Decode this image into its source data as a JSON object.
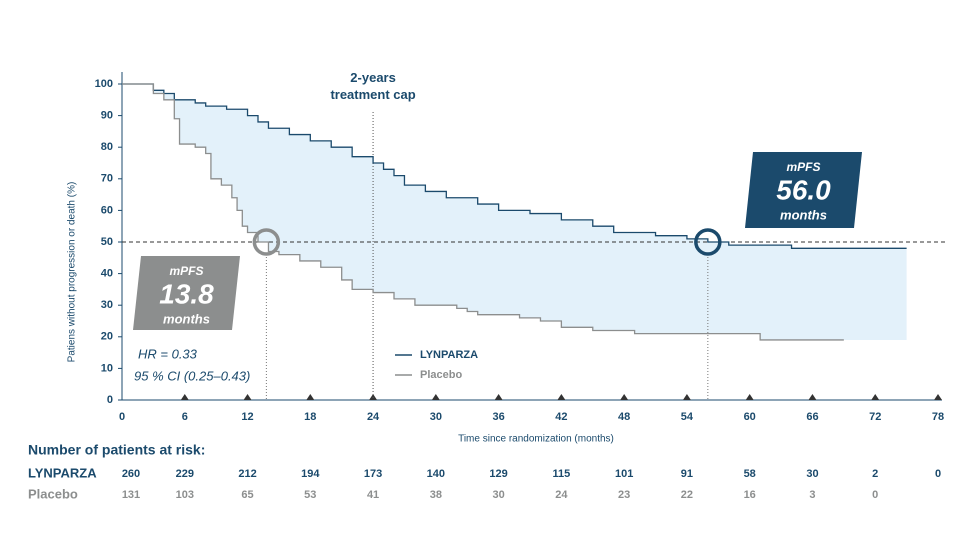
{
  "chart_data": {
    "type": "step",
    "xlabel": "Time since randomization (months)",
    "ylabel": "Patiens without progression or death (%)",
    "xlim": [
      0,
      78
    ],
    "xticks": [
      0,
      6,
      12,
      18,
      24,
      30,
      36,
      42,
      48,
      54,
      60,
      66,
      72,
      78
    ],
    "ylim": [
      0,
      100
    ],
    "yticks": [
      0,
      10,
      20,
      30,
      40,
      50,
      60,
      70,
      80,
      90,
      100
    ],
    "reference_line": 50,
    "treatment_cap": {
      "value": 24,
      "label": "2-years treatment cap"
    },
    "series": [
      {
        "name": "LYNPARZA",
        "color": "#1b4a6c",
        "x": [
          0,
          2.5,
          3,
          4,
          5,
          7,
          8,
          10,
          12,
          13,
          14,
          16,
          18,
          20,
          22,
          24,
          25,
          26,
          27,
          29,
          31,
          34,
          36,
          39,
          42,
          45,
          47,
          51,
          54,
          56,
          58,
          64,
          75
        ],
        "values": [
          100,
          100,
          98,
          97,
          95,
          94,
          93,
          92,
          90,
          88,
          86,
          84,
          82,
          80,
          77,
          75,
          73,
          71,
          68,
          66,
          64,
          62,
          60,
          59,
          57,
          55,
          53,
          52,
          51,
          50,
          49,
          48,
          48
        ],
        "median": {
          "title": "mPFS",
          "value": 56,
          "label": "56.0",
          "unit": "months"
        }
      },
      {
        "name": "Placebo",
        "color": "#8c8e8e",
        "x": [
          0,
          2.5,
          3,
          4,
          5,
          5.5,
          7,
          8,
          8.5,
          9.5,
          10.5,
          11,
          11.5,
          12,
          13,
          14,
          15,
          17,
          19,
          21,
          22,
          24,
          26,
          28,
          32,
          33,
          34,
          38,
          40,
          42,
          45,
          49,
          57,
          61,
          69
        ],
        "values": [
          100,
          100,
          97,
          95,
          89,
          81,
          80,
          78,
          70,
          68,
          64,
          60,
          55,
          53,
          50,
          47,
          46,
          44,
          42,
          38,
          35,
          34,
          32,
          30,
          29,
          28,
          27,
          26,
          25,
          23,
          22,
          21,
          21,
          19,
          19
        ],
        "median": {
          "title": "mPFS",
          "value": 13.8,
          "label": "13.8",
          "unit": "months"
        }
      }
    ],
    "annotations": [
      "HR = 0.33",
      "95 % CI (0.25–0.43)"
    ]
  },
  "risk_table": {
    "title": "Number of patients at risk:",
    "rows": [
      {
        "name": "LYNPARZA",
        "values": [
          260,
          229,
          212,
          194,
          173,
          140,
          129,
          115,
          101,
          91,
          58,
          30,
          2,
          0
        ]
      },
      {
        "name": "Placebo",
        "values": [
          131,
          103,
          65,
          53,
          41,
          38,
          30,
          24,
          23,
          22,
          16,
          3,
          0
        ]
      }
    ]
  }
}
